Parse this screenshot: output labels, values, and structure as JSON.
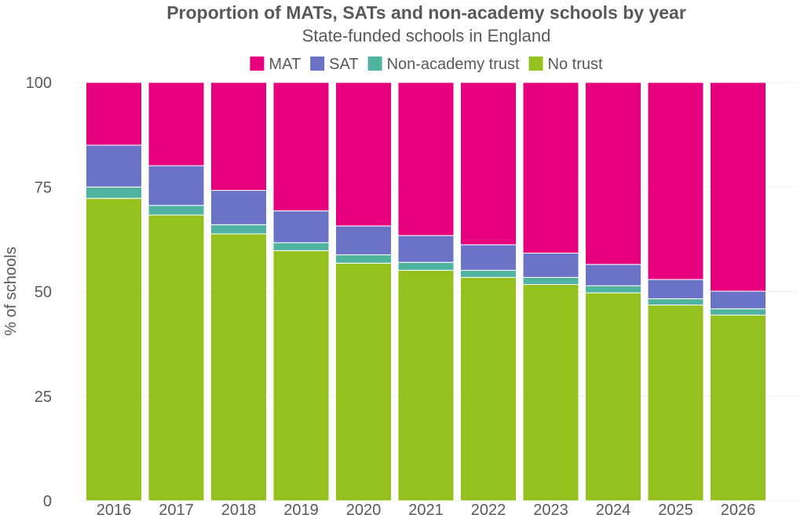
{
  "chart_data": {
    "type": "bar",
    "stacked": true,
    "title": "Proportion of MATs, SATs and non-academy schools by year",
    "subtitle": "State-funded schools in England",
    "xlabel": "",
    "ylabel": "% of schools",
    "ylim": [
      0,
      100
    ],
    "yticks": [
      "0",
      "25",
      "50",
      "75",
      "100"
    ],
    "grid": true,
    "legend_position": "top",
    "categories": [
      "2016",
      "2017",
      "2018",
      "2019",
      "2020",
      "2021",
      "2022",
      "2023",
      "2024",
      "2025",
      "2026"
    ],
    "series": [
      {
        "name": "No trust",
        "color": "#95C11F",
        "values": [
          72.3,
          68.3,
          63.8,
          59.8,
          56.8,
          55.1,
          53.4,
          51.7,
          49.7,
          46.8,
          44.4
        ]
      },
      {
        "name": "Non-academy trust",
        "color": "#4FB3A0",
        "values": [
          2.7,
          2.3,
          2.2,
          1.9,
          2.0,
          1.9,
          1.7,
          1.7,
          1.7,
          1.5,
          1.5
        ]
      },
      {
        "name": "SAT",
        "color": "#6A73C6",
        "values": [
          10.0,
          9.5,
          8.2,
          7.6,
          6.9,
          6.4,
          6.1,
          5.8,
          5.1,
          4.6,
          4.2
        ]
      },
      {
        "name": "MAT",
        "color": "#E6007E",
        "values": [
          15.0,
          19.9,
          25.8,
          30.7,
          34.3,
          36.6,
          38.8,
          40.8,
          43.5,
          47.1,
          49.9
        ]
      }
    ],
    "legend_order": [
      "MAT",
      "SAT",
      "Non-academy trust",
      "No trust"
    ]
  }
}
